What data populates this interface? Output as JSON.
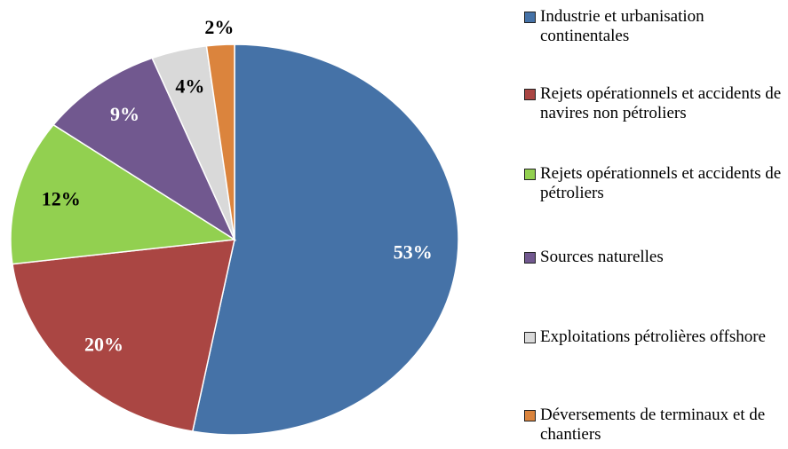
{
  "chart_data": {
    "type": "pie",
    "categories": [
      "Industrie et urbanisation continentales",
      "Rejets opérationnels et accidents de navires non pétroliers",
      "Rejets opérationnels et accidents de pétroliers",
      "Sources naturelles",
      "Exploitations pétrolières offshore",
      "Déversements de terminaux et de chantiers"
    ],
    "values": [
      53,
      20,
      12,
      9,
      4,
      2
    ],
    "value_labels": [
      "53%",
      "20%",
      "12%",
      "9%",
      "4%",
      "2%"
    ],
    "colors": [
      "#4572a7",
      "#aa4643",
      "#92d050",
      "#71588f",
      "#d9d9d9",
      "#db843d"
    ],
    "legend": "right"
  }
}
